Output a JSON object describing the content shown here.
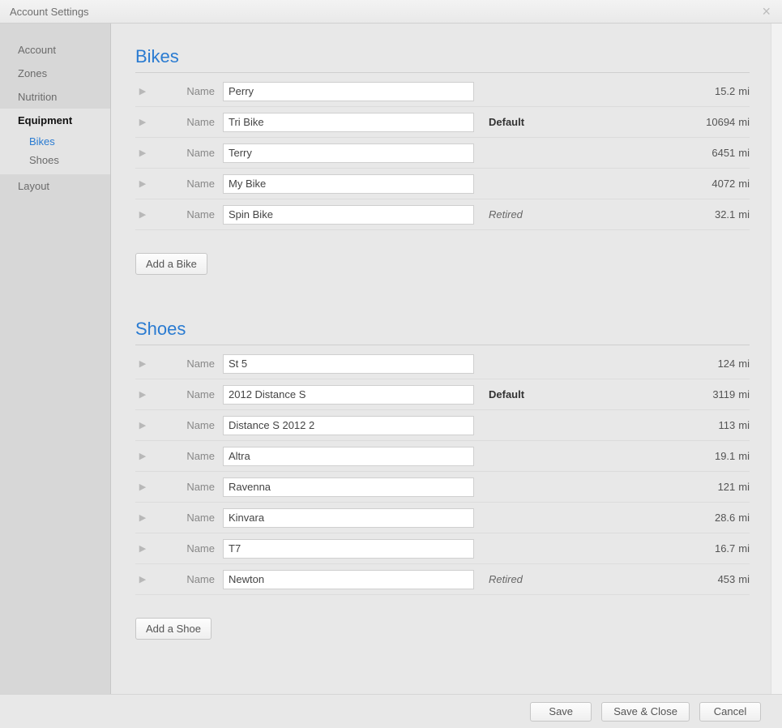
{
  "dialog": {
    "title": "Account Settings"
  },
  "sidebar": {
    "items": [
      {
        "label": "Account"
      },
      {
        "label": "Zones"
      },
      {
        "label": "Nutrition"
      },
      {
        "label": "Equipment",
        "active": true
      },
      {
        "label": "Layout"
      }
    ],
    "subitems": [
      {
        "label": "Bikes",
        "link": true
      },
      {
        "label": "Shoes"
      }
    ]
  },
  "labels": {
    "name": "Name",
    "unit": "mi"
  },
  "sections": {
    "bikes": {
      "title": "Bikes",
      "add_button": "Add a Bike",
      "items": [
        {
          "name": "Perry",
          "status": "",
          "distance": "15.2"
        },
        {
          "name": "Tri Bike",
          "status": "Default",
          "distance": "10694"
        },
        {
          "name": "Terry",
          "status": "",
          "distance": "6451"
        },
        {
          "name": "My Bike",
          "status": "",
          "distance": "4072"
        },
        {
          "name": "Spin Bike",
          "status": "Retired",
          "distance": "32.1"
        }
      ]
    },
    "shoes": {
      "title": "Shoes",
      "add_button": "Add a Shoe",
      "items": [
        {
          "name": "St 5",
          "status": "",
          "distance": "124"
        },
        {
          "name": "2012 Distance S",
          "status": "Default",
          "distance": "3119"
        },
        {
          "name": "Distance S 2012 2",
          "status": "",
          "distance": "113"
        },
        {
          "name": "Altra",
          "status": "",
          "distance": "19.1"
        },
        {
          "name": "Ravenna",
          "status": "",
          "distance": "121"
        },
        {
          "name": "Kinvara",
          "status": "",
          "distance": "28.6"
        },
        {
          "name": "T7",
          "status": "",
          "distance": "16.7"
        },
        {
          "name": "Newton",
          "status": "Retired",
          "distance": "453"
        }
      ]
    }
  },
  "footer": {
    "save": "Save",
    "save_close": "Save & Close",
    "cancel": "Cancel"
  },
  "colors": {
    "accent": "#2a7bd1",
    "background": "#e8e8e8",
    "sidebar": "#d7d7d7",
    "border": "#cfcfcf"
  }
}
